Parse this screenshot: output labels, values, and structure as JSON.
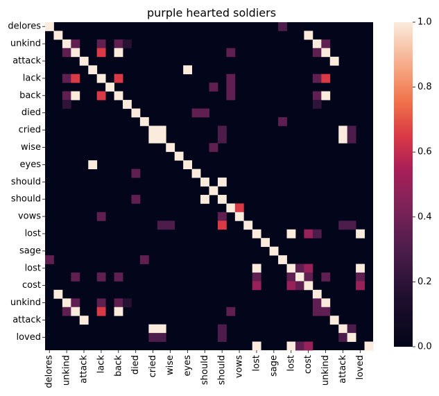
{
  "chart_data": {
    "type": "heatmap",
    "title": "purple hearted soldiers",
    "colormap": "rocket",
    "vmin": 0.0,
    "vmax": 1.0,
    "colorbar_ticks": [
      "0.0",
      "0.2",
      "0.4",
      "0.6",
      "0.8",
      "1.0"
    ],
    "colorbar_tick_values": [
      0.0,
      0.2,
      0.4,
      0.6,
      0.8,
      1.0
    ],
    "labels": [
      "delores",
      "",
      "unkind",
      "",
      "attack",
      "",
      "lack",
      "",
      "back",
      "",
      "died",
      "",
      "cried",
      "",
      "wise",
      "",
      "eyes",
      "",
      "should",
      "",
      "should",
      "",
      "vows",
      "",
      "lost",
      "",
      "sage",
      "",
      "lost",
      "",
      "cost",
      "",
      "unkind",
      "",
      "attack",
      "",
      "loved",
      ""
    ],
    "cells": [
      [
        0,
        0,
        1.0
      ],
      [
        0,
        27,
        0.3
      ],
      [
        1,
        1,
        1.0
      ],
      [
        1,
        30,
        1.0
      ],
      [
        2,
        2,
        1.0
      ],
      [
        2,
        3,
        0.35
      ],
      [
        2,
        6,
        0.35
      ],
      [
        2,
        8,
        0.35
      ],
      [
        2,
        9,
        0.18
      ],
      [
        2,
        31,
        1.0
      ],
      [
        2,
        32,
        0.35
      ],
      [
        3,
        2,
        0.35
      ],
      [
        3,
        3,
        1.0
      ],
      [
        3,
        6,
        0.65
      ],
      [
        3,
        8,
        1.0
      ],
      [
        3,
        21,
        0.35
      ],
      [
        3,
        31,
        0.35
      ],
      [
        3,
        32,
        1.0
      ],
      [
        4,
        4,
        1.0
      ],
      [
        4,
        33,
        1.0
      ],
      [
        5,
        5,
        1.0
      ],
      [
        5,
        16,
        1.0
      ],
      [
        6,
        2,
        0.35
      ],
      [
        6,
        3,
        0.65
      ],
      [
        6,
        6,
        1.0
      ],
      [
        6,
        8,
        0.65
      ],
      [
        6,
        21,
        0.35
      ],
      [
        6,
        31,
        0.35
      ],
      [
        6,
        32,
        0.65
      ],
      [
        7,
        7,
        1.0
      ],
      [
        7,
        19,
        0.35
      ],
      [
        7,
        21,
        0.35
      ],
      [
        8,
        2,
        0.35
      ],
      [
        8,
        3,
        1.0
      ],
      [
        8,
        6,
        0.65
      ],
      [
        8,
        8,
        1.0
      ],
      [
        8,
        21,
        0.35
      ],
      [
        8,
        31,
        0.35
      ],
      [
        8,
        32,
        1.0
      ],
      [
        9,
        2,
        0.2
      ],
      [
        9,
        9,
        1.0
      ],
      [
        9,
        31,
        0.2
      ],
      [
        10,
        10,
        1.0
      ],
      [
        10,
        17,
        0.35
      ],
      [
        10,
        18,
        0.35
      ],
      [
        11,
        11,
        1.0
      ],
      [
        11,
        27,
        0.35
      ],
      [
        12,
        12,
        1.0
      ],
      [
        12,
        13,
        1.0
      ],
      [
        12,
        20,
        0.3
      ],
      [
        12,
        34,
        1.0
      ],
      [
        12,
        35,
        0.3
      ],
      [
        13,
        12,
        1.0
      ],
      [
        13,
        13,
        1.0
      ],
      [
        13,
        20,
        0.3
      ],
      [
        13,
        34,
        1.0
      ],
      [
        13,
        35,
        0.3
      ],
      [
        14,
        14,
        1.0
      ],
      [
        14,
        19,
        0.35
      ],
      [
        15,
        15,
        1.0
      ],
      [
        16,
        5,
        1.0
      ],
      [
        16,
        16,
        1.0
      ],
      [
        17,
        10,
        0.35
      ],
      [
        17,
        17,
        1.0
      ],
      [
        18,
        18,
        1.0
      ],
      [
        18,
        20,
        1.0
      ],
      [
        19,
        19,
        1.0
      ],
      [
        20,
        10,
        0.35
      ],
      [
        20,
        18,
        1.0
      ],
      [
        20,
        20,
        1.0
      ],
      [
        21,
        21,
        1.0
      ],
      [
        21,
        22,
        0.65
      ],
      [
        22,
        6,
        0.35
      ],
      [
        22,
        20,
        0.35
      ],
      [
        22,
        22,
        1.0
      ],
      [
        23,
        13,
        0.3
      ],
      [
        23,
        14,
        0.3
      ],
      [
        23,
        20,
        0.65
      ],
      [
        23,
        23,
        1.0
      ],
      [
        23,
        34,
        0.3
      ],
      [
        23,
        35,
        0.3
      ],
      [
        24,
        24,
        1.0
      ],
      [
        24,
        28,
        1.0
      ],
      [
        24,
        30,
        0.5
      ],
      [
        24,
        31,
        0.3
      ],
      [
        24,
        36,
        1.0
      ],
      [
        25,
        25,
        1.0
      ],
      [
        26,
        26,
        1.0
      ],
      [
        27,
        0,
        0.35
      ],
      [
        27,
        11,
        0.35
      ],
      [
        27,
        27,
        1.0
      ],
      [
        28,
        24,
        1.0
      ],
      [
        28,
        28,
        1.0
      ],
      [
        28,
        29,
        0.35
      ],
      [
        28,
        30,
        0.5
      ],
      [
        28,
        36,
        1.0
      ],
      [
        29,
        3,
        0.35
      ],
      [
        29,
        6,
        0.35
      ],
      [
        29,
        8,
        0.35
      ],
      [
        29,
        24,
        0.35
      ],
      [
        29,
        28,
        0.35
      ],
      [
        29,
        29,
        1.0
      ],
      [
        29,
        30,
        0.35
      ],
      [
        29,
        32,
        0.35
      ],
      [
        29,
        36,
        0.35
      ],
      [
        30,
        24,
        0.5
      ],
      [
        30,
        28,
        0.5
      ],
      [
        30,
        29,
        0.35
      ],
      [
        30,
        30,
        1.0
      ],
      [
        30,
        36,
        0.5
      ],
      [
        31,
        1,
        1.0
      ],
      [
        31,
        31,
        1.0
      ],
      [
        32,
        2,
        1.0
      ],
      [
        32,
        3,
        0.35
      ],
      [
        32,
        6,
        0.35
      ],
      [
        32,
        8,
        0.35
      ],
      [
        32,
        9,
        0.18
      ],
      [
        32,
        31,
        0.35
      ],
      [
        32,
        32,
        1.0
      ],
      [
        33,
        2,
        0.35
      ],
      [
        33,
        3,
        1.0
      ],
      [
        33,
        6,
        0.65
      ],
      [
        33,
        8,
        1.0
      ],
      [
        33,
        21,
        0.35
      ],
      [
        33,
        31,
        0.35
      ],
      [
        33,
        32,
        0.35
      ],
      [
        34,
        4,
        1.0
      ],
      [
        34,
        33,
        1.0
      ],
      [
        35,
        12,
        1.0
      ],
      [
        35,
        13,
        1.0
      ],
      [
        35,
        20,
        0.3
      ],
      [
        35,
        34,
        1.0
      ],
      [
        35,
        35,
        0.3
      ],
      [
        36,
        12,
        0.3
      ],
      [
        36,
        13,
        0.3
      ],
      [
        36,
        20,
        0.3
      ],
      [
        36,
        34,
        0.3
      ],
      [
        36,
        35,
        1.0
      ],
      [
        37,
        24,
        1.0
      ],
      [
        37,
        28,
        1.0
      ],
      [
        37,
        29,
        0.35
      ],
      [
        37,
        30,
        0.5
      ],
      [
        37,
        37,
        1.0
      ]
    ]
  }
}
